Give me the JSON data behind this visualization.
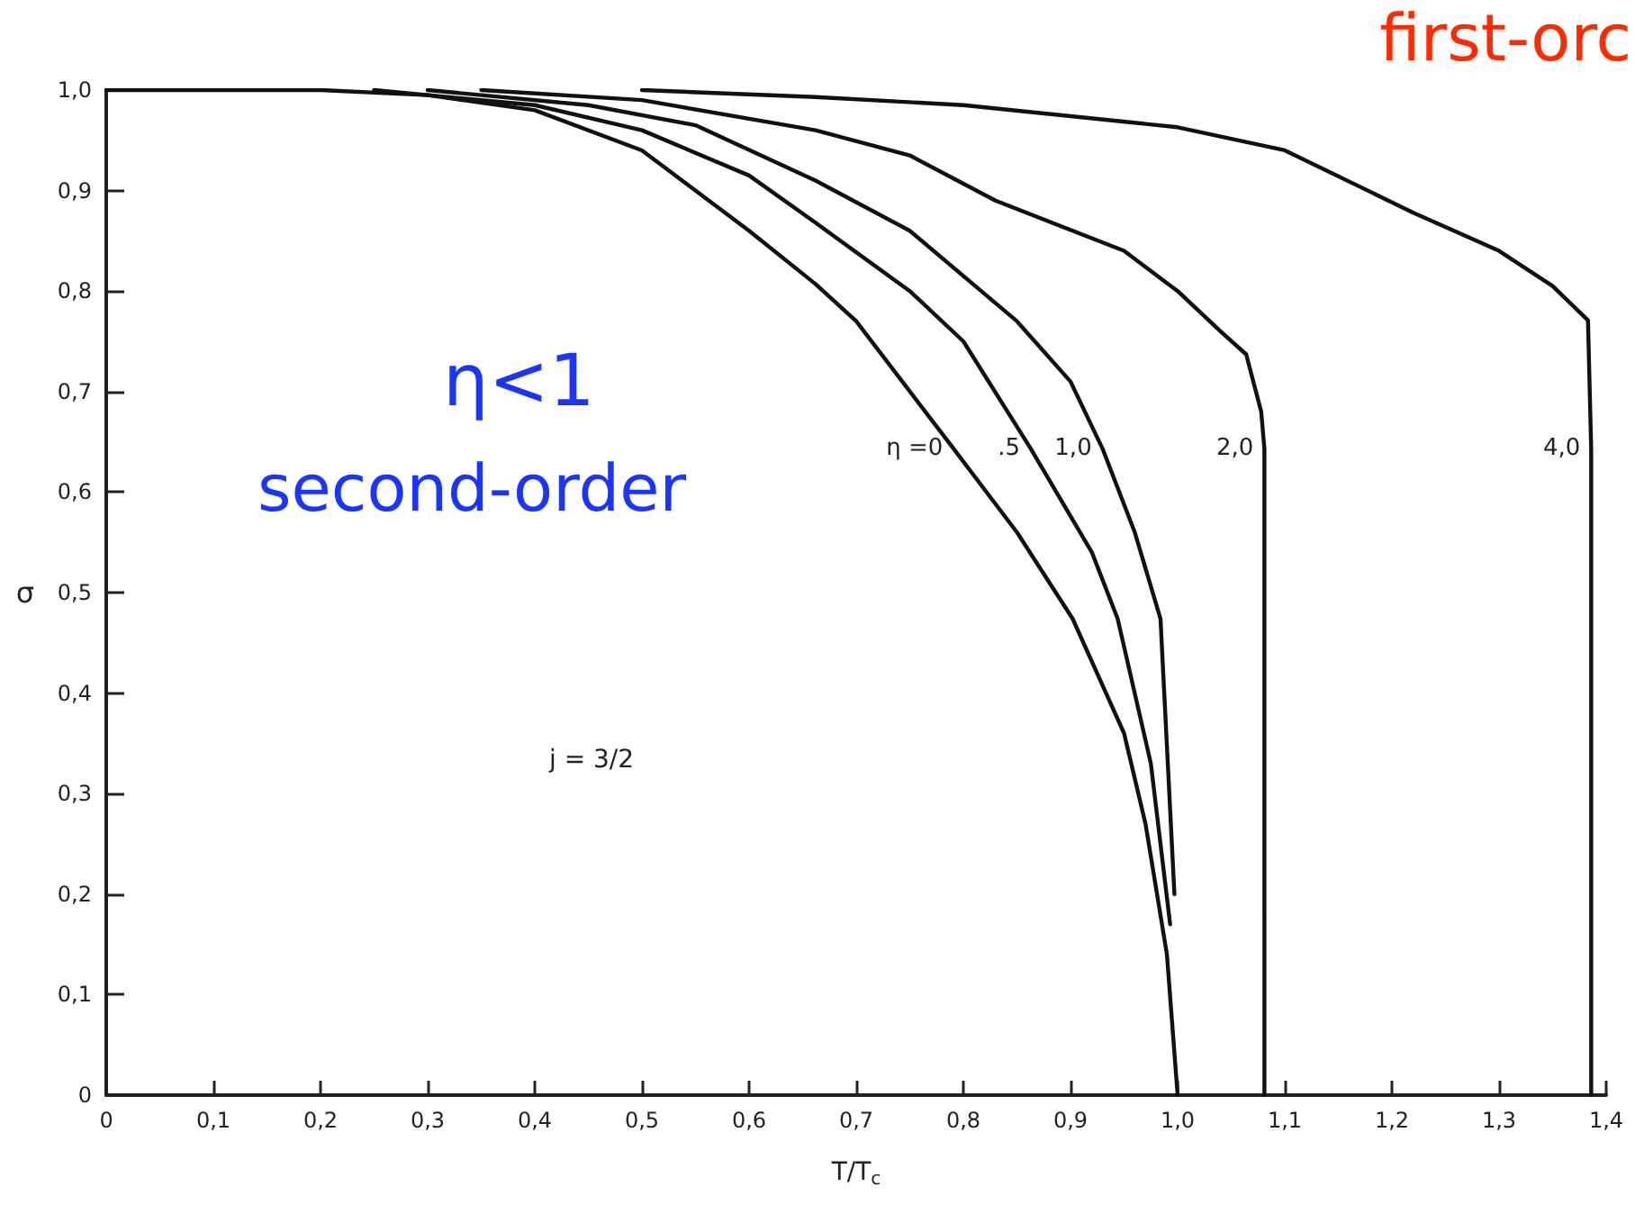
{
  "chart_data": {
    "type": "line",
    "xlabel": "T/T$_{c}$",
    "ylabel": "σ",
    "xlim": [
      0,
      1.4
    ],
    "ylim": [
      0,
      1.0
    ],
    "xticks": [
      0,
      {
        "value": 0.1,
        "label": "0,1"
      },
      {
        "value": 0.2,
        "label": "0,2"
      },
      {
        "value": 0.3,
        "label": "0,3"
      },
      {
        "value": 0.4,
        "label": "0,4"
      },
      {
        "value": 0.5,
        "label": "0,5"
      },
      {
        "value": 0.6,
        "label": "0,6"
      },
      {
        "value": 0.7,
        "label": "0,7"
      },
      {
        "value": 0.8,
        "label": "0,8"
      },
      {
        "value": 0.9,
        "label": "0,9"
      },
      {
        "value": 1.0,
        "label": "1,0"
      },
      {
        "value": 1.1,
        "label": "1,1"
      },
      {
        "value": 1.2,
        "label": "1,2"
      },
      {
        "value": 1.3,
        "label": "1,3"
      },
      {
        "value": 1.4,
        "label": "1,4"
      }
    ],
    "yticks": [
      0,
      {
        "value": 0.1,
        "label": "0,1"
      },
      {
        "value": 0.2,
        "label": "0,2"
      },
      {
        "value": 0.3,
        "label": "0,3"
      },
      {
        "value": 0.4,
        "label": "0,4"
      },
      {
        "value": 0.5,
        "label": "0,5"
      },
      {
        "value": 0.6,
        "label": "0,6"
      },
      {
        "value": 0.7,
        "label": "0,7"
      },
      {
        "value": 0.8,
        "label": "0,8"
      },
      {
        "value": 0.9,
        "label": "0,9"
      },
      {
        "value": 1.0,
        "label": "1,0"
      }
    ],
    "grid": false,
    "legend": false,
    "marker": "none",
    "line_style": "solid",
    "series": [
      {
        "name": "η =0",
        "color": "#111111",
        "x": [
          0,
          0.2,
          0.3,
          0.4,
          0.5,
          0.6,
          0.662,
          0.7,
          0.791,
          0.85,
          0.902,
          0.95,
          0.97,
          0.99,
          1.0
        ],
        "values": [
          1.0,
          1.0,
          0.995,
          0.98,
          0.94,
          0.86,
          0.807,
          0.77,
          0.643,
          0.56,
          0.474,
          0.36,
          0.27,
          0.14,
          0
        ]
      },
      {
        "name": ".5",
        "color": "#111111",
        "x": [
          0.25,
          0.4,
          0.5,
          0.6,
          0.662,
          0.75,
          0.8,
          0.863,
          0.92,
          0.944,
          0.975,
          0.993
        ],
        "values": [
          1.0,
          0.985,
          0.96,
          0.915,
          0.868,
          0.8,
          0.75,
          0.643,
          0.54,
          0.474,
          0.33,
          0.17
        ]
      },
      {
        "name": "1,0",
        "color": "#111111",
        "x": [
          0.3,
          0.45,
          0.55,
          0.662,
          0.75,
          0.85,
          0.9,
          0.93,
          0.96,
          0.984,
          0.997
        ],
        "values": [
          1.0,
          0.985,
          0.965,
          0.91,
          0.86,
          0.77,
          0.71,
          0.643,
          0.56,
          0.474,
          0.2
        ]
      },
      {
        "name": "2,0",
        "color": "#111111",
        "x": [
          0.35,
          0.5,
          0.662,
          0.75,
          0.83,
          0.95,
          1.0,
          1.04,
          1.064,
          1.078,
          1.081,
          1.081
        ],
        "values": [
          1.0,
          0.99,
          0.96,
          0.935,
          0.89,
          0.84,
          0.8,
          0.76,
          0.737,
          0.68,
          0.643,
          0
        ]
      },
      {
        "name": "4,0",
        "color": "#111111",
        "x": [
          0.5,
          0.662,
          0.8,
          1.0,
          1.1,
          1.22,
          1.3,
          1.35,
          1.383,
          1.386,
          1.386
        ],
        "values": [
          1.0,
          0.993,
          0.985,
          0.963,
          0.94,
          0.878,
          0.84,
          0.805,
          0.771,
          0.643,
          0
        ]
      }
    ],
    "annotations": [
      "η<1",
      "second-order",
      "first-orc",
      "j = 3/2"
    ]
  }
}
